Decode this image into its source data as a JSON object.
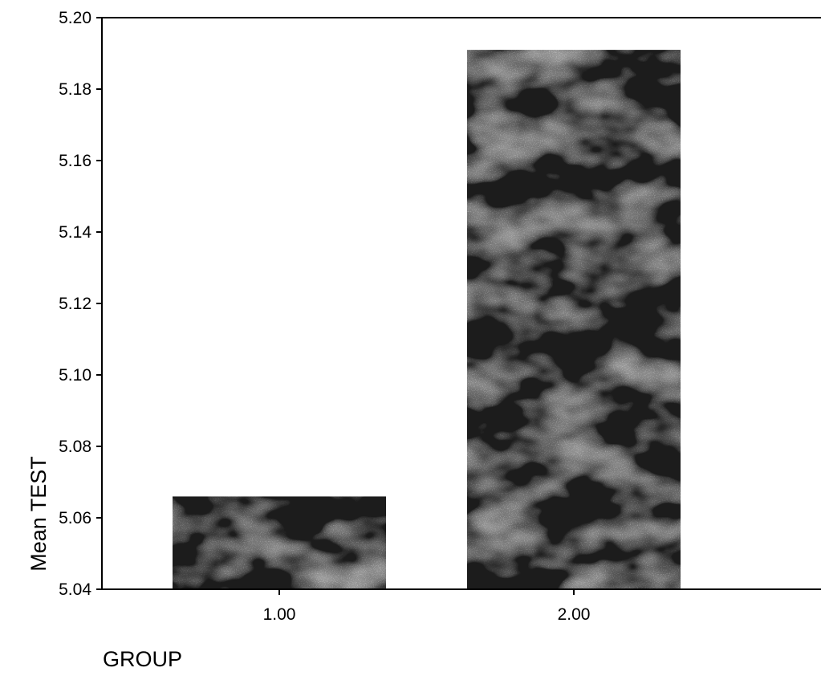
{
  "chart_data": {
    "type": "bar",
    "categories": [
      "1.00",
      "2.00"
    ],
    "values": [
      5.066,
      5.191
    ],
    "xlabel": "GROUP",
    "ylabel": "Mean TEST",
    "ylim": [
      5.04,
      5.2
    ],
    "yticks": [
      "5.04",
      "5.06",
      "5.08",
      "5.10",
      "5.12",
      "5.14",
      "5.16",
      "5.18",
      "5.20"
    ],
    "grid": false,
    "legend": "none",
    "bar_color": "#1c1c1c",
    "bar_texture_color": "#5a5a5a"
  }
}
